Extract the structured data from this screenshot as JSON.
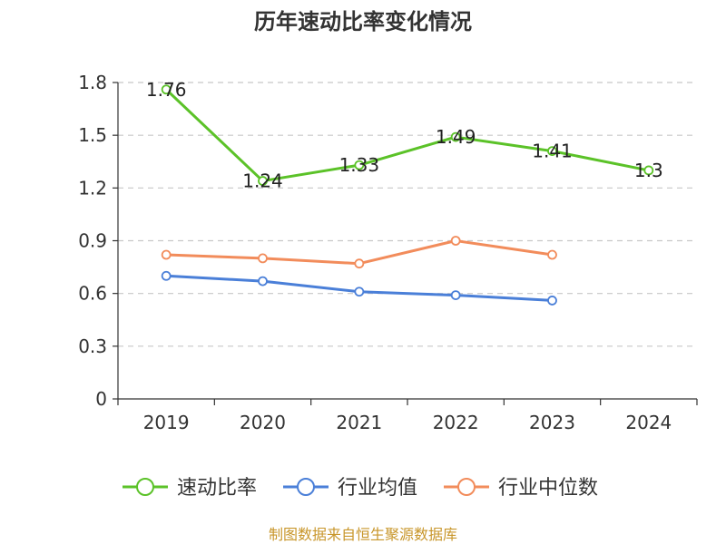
{
  "chart_data": {
    "type": "line",
    "title": "历年速动比率变化情况",
    "categories": [
      "2019",
      "2020",
      "2021",
      "2022",
      "2023",
      "2024"
    ],
    "ylim": [
      0,
      1.8
    ],
    "yticks": [
      "0",
      "0.3",
      "0.6",
      "0.9",
      "1.2",
      "1.5",
      "1.8"
    ],
    "grid": true,
    "legend_position": "bottom",
    "series": [
      {
        "name": "速动比率",
        "color": "#5bc228",
        "values": [
          1.76,
          1.24,
          1.33,
          1.49,
          1.41,
          1.3
        ],
        "labels": [
          "1.76",
          "1.24",
          "1.33",
          "1.49",
          "1.41",
          "1.3"
        ]
      },
      {
        "name": "行业均值",
        "color": "#4a7fd8",
        "values": [
          0.7,
          0.67,
          0.61,
          0.59,
          0.56,
          null
        ]
      },
      {
        "name": "行业中位数",
        "color": "#f28c5b",
        "values": [
          0.82,
          0.8,
          0.77,
          0.9,
          0.82,
          null
        ]
      }
    ],
    "source": "制图数据来自恒生聚源数据库"
  }
}
